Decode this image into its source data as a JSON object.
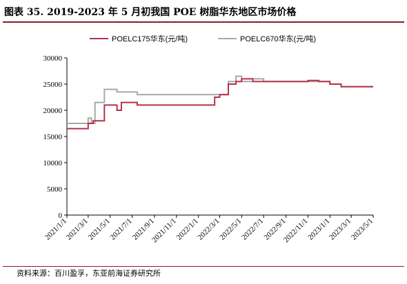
{
  "figure": {
    "title": "图表 35. 2019-2023 年 5 月初我国 POE 树脂华东地区市场价格",
    "source": "资料来源：百川盈孚，东亚前海证券研究所"
  },
  "colors": {
    "accent_rule": "#8b1a2b",
    "series_1": "#b5314a",
    "series_2": "#a8a8a8",
    "axis": "#000000"
  },
  "chart_data": {
    "type": "line",
    "title": "",
    "xlabel": "",
    "ylabel": "",
    "ylim": [
      0,
      30000
    ],
    "yticks": [
      0,
      5000,
      10000,
      15000,
      20000,
      25000,
      30000
    ],
    "yticklabels": [
      "0",
      "5000",
      "10000",
      "15000",
      "20000",
      "25000",
      "30000"
    ],
    "xlim": [
      "2021/1/1",
      "2023/5/1"
    ],
    "xticks": [
      "2021/1/1",
      "2021/3/1",
      "2021/5/1",
      "2021/7/1",
      "2021/9/1",
      "2021/11/1",
      "2022/1/1",
      "2022/3/1",
      "2022/5/1",
      "2022/7/1",
      "2022/9/1",
      "2022/11/1",
      "2023/1/1",
      "2023/3/1",
      "2023/5/1"
    ],
    "grid": false,
    "legend_position": "top",
    "series": [
      {
        "name": "POELC175华东(元/吨)",
        "color": "#b5314a",
        "step": true,
        "points": [
          [
            "2021/1/1",
            16500
          ],
          [
            "2021/3/1",
            17500
          ],
          [
            "2021/3/15",
            18000
          ],
          [
            "2021/4/15",
            21000
          ],
          [
            "2021/5/20",
            20000
          ],
          [
            "2021/6/1",
            21500
          ],
          [
            "2021/7/15",
            21000
          ],
          [
            "2022/2/15",
            22500
          ],
          [
            "2022/3/1",
            23000
          ],
          [
            "2022/3/25",
            25000
          ],
          [
            "2022/4/15",
            25500
          ],
          [
            "2022/5/1",
            26000
          ],
          [
            "2022/6/1",
            25500
          ],
          [
            "2022/7/1",
            25500
          ],
          [
            "2022/11/1",
            25700
          ],
          [
            "2022/12/1",
            25500
          ],
          [
            "2023/1/1",
            25000
          ],
          [
            "2023/2/1",
            24500
          ],
          [
            "2023/5/1",
            24500
          ]
        ]
      },
      {
        "name": "POELC670华东(元/吨)",
        "color": "#a8a8a8",
        "step": true,
        "points": [
          [
            "2021/1/1",
            17500
          ],
          [
            "2021/3/1",
            18500
          ],
          [
            "2021/3/10",
            17500
          ],
          [
            "2021/3/20",
            21500
          ],
          [
            "2021/4/15",
            24000
          ],
          [
            "2021/5/20",
            23500
          ],
          [
            "2021/7/15",
            23000
          ],
          [
            "2022/3/1",
            23000
          ],
          [
            "2022/3/25",
            25500
          ],
          [
            "2022/4/15",
            26500
          ],
          [
            "2022/5/1",
            25500
          ],
          [
            "2022/6/1",
            26000
          ],
          [
            "2022/7/1",
            25500
          ],
          [
            "2022/11/1",
            25500
          ],
          [
            "2022/12/1",
            25500
          ],
          [
            "2023/1/1",
            25000
          ],
          [
            "2023/2/1",
            24500
          ],
          [
            "2023/5/1",
            24500
          ]
        ]
      }
    ]
  }
}
